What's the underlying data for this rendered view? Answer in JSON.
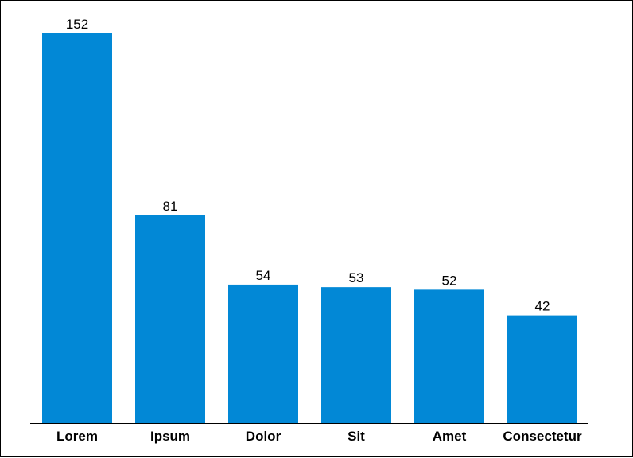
{
  "chart_data": {
    "type": "bar",
    "categories": [
      "Lorem",
      "Ipsum",
      "Dolor",
      "Sit",
      "Amet",
      "Consectetur"
    ],
    "values": [
      152,
      81,
      54,
      53,
      52,
      42
    ],
    "title": "",
    "xlabel": "",
    "ylabel": "",
    "ylim": [
      0,
      152
    ],
    "grid": false,
    "legend": "none",
    "data_labels": true,
    "bar_color": "#0288d6"
  }
}
